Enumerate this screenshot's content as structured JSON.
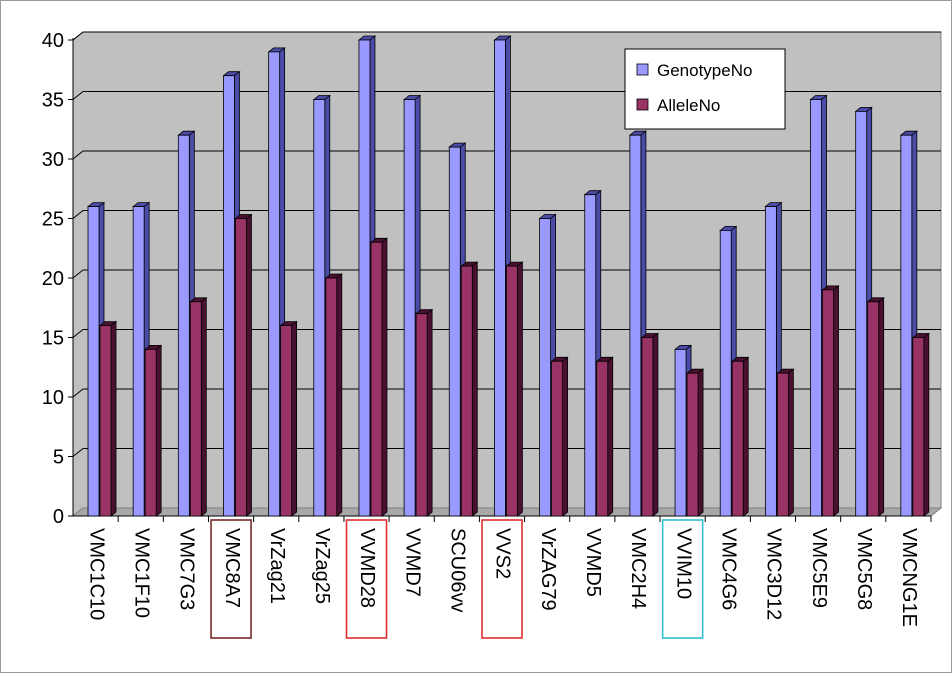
{
  "chart_data": {
    "type": "bar",
    "title": "",
    "xlabel": "",
    "ylabel": "",
    "ylim": [
      0,
      40
    ],
    "y_ticks": [
      0,
      5,
      10,
      15,
      20,
      25,
      30,
      35,
      40
    ],
    "grid": true,
    "legend_position": "top-right",
    "style": "3d-clustered-column",
    "colors": {
      "plot_background": "#c0c0c0",
      "genotype_fill": "#9999ff",
      "genotype_side": "#4b4ba8",
      "allele_fill": "#993366",
      "allele_side": "#4a1030",
      "gridline": "#000000"
    },
    "categories": [
      "VMC1C10",
      "VMC1F10",
      "VMC7G3",
      "VMC8A7",
      "VrZag21",
      "VrZag25",
      "VVMD28",
      "VVMD7",
      "SCU06vv",
      "VVS2",
      "VrZAG79",
      "VVMD5",
      "VMC2H4",
      "VVIM10",
      "VMC4G6",
      "VMC3D12",
      "VMC5E9",
      "VMC5G8",
      "VMCNG1E"
    ],
    "highlighted_categories": [
      {
        "category": "VMC8A7",
        "box_color": "#7a2a2a"
      },
      {
        "category": "VVMD28",
        "box_color": "#e03030"
      },
      {
        "category": "VVS2",
        "box_color": "#e03030"
      },
      {
        "category": "VVIM10",
        "box_color": "#30c0d0"
      }
    ],
    "series": [
      {
        "name": "GenotypeNo",
        "values": [
          26,
          26,
          32,
          37,
          39,
          35,
          40,
          35,
          31,
          40,
          25,
          27,
          32,
          14,
          24,
          26,
          35,
          34,
          32
        ]
      },
      {
        "name": "AlleleNo",
        "values": [
          16,
          14,
          18,
          25,
          16,
          20,
          23,
          17,
          21,
          21,
          13,
          13,
          15,
          12,
          13,
          12,
          19,
          18,
          15
        ]
      }
    ]
  }
}
